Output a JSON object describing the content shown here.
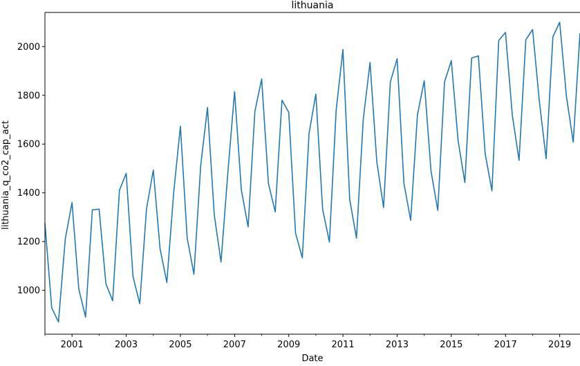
{
  "chart_data": {
    "type": "line",
    "title": "lithuania",
    "xlabel": "Date",
    "ylabel": "lithuania_q_co2_cap_act",
    "xlim": [
      2000.0,
      2019.75
    ],
    "ylim": [
      820,
      2140
    ],
    "xticks": [
      2001,
      2003,
      2005,
      2007,
      2009,
      2011,
      2013,
      2015,
      2017,
      2019
    ],
    "yticks": [
      1000,
      1200,
      1400,
      1600,
      1800,
      2000
    ],
    "grid": false,
    "line_color": "#1f77b4",
    "series": [
      {
        "x": [
          2000.0,
          2000.25,
          2000.5,
          2000.75,
          2001.0,
          2001.25,
          2001.5,
          2001.75,
          2002.0,
          2002.25,
          2002.5,
          2002.75,
          2003.0,
          2003.25,
          2003.5,
          2003.75,
          2004.0,
          2004.25,
          2004.5,
          2004.75,
          2005.0,
          2005.25,
          2005.5,
          2005.75,
          2006.0,
          2006.25,
          2006.5,
          2006.75,
          2007.0,
          2007.25,
          2007.5,
          2007.75,
          2008.0,
          2008.25,
          2008.5,
          2008.75,
          2009.0,
          2009.25,
          2009.5,
          2009.75,
          2010.0,
          2010.25,
          2010.5,
          2010.75,
          2011.0,
          2011.25,
          2011.5,
          2011.75,
          2012.0,
          2012.25,
          2012.5,
          2012.75,
          2013.0,
          2013.25,
          2013.5,
          2013.75,
          2014.0,
          2014.25,
          2014.5,
          2014.75,
          2015.0,
          2015.25,
          2015.5,
          2015.75,
          2016.0,
          2016.25,
          2016.5,
          2016.75,
          2017.0,
          2017.25,
          2017.5,
          2017.75,
          2018.0,
          2018.25,
          2018.5,
          2018.75,
          2019.0,
          2019.25,
          2019.5,
          2019.75
        ],
        "values": [
          1275,
          928,
          870,
          1210,
          1360,
          1005,
          890,
          1330,
          1333,
          1027,
          957,
          1410,
          1480,
          1057,
          945,
          1335,
          1493,
          1170,
          1032,
          1398,
          1673,
          1215,
          1066,
          1512,
          1750,
          1310,
          1116,
          1480,
          1815,
          1412,
          1260,
          1735,
          1867,
          1438,
          1322,
          1780,
          1730,
          1235,
          1133,
          1645,
          1805,
          1332,
          1198,
          1740,
          1988,
          1372,
          1214,
          1702,
          1935,
          1527,
          1340,
          1855,
          1950,
          1440,
          1287,
          1720,
          1860,
          1490,
          1328,
          1855,
          1942,
          1615,
          1442,
          1953,
          1962,
          1560,
          1408,
          2025,
          2058,
          1720,
          1533,
          2028,
          2070,
          1775,
          1540,
          2040,
          2100,
          1795,
          1608,
          2055
        ]
      }
    ]
  }
}
